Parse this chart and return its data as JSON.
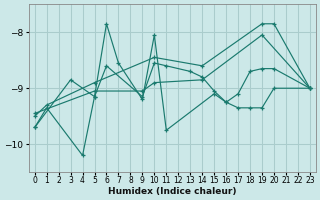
{
  "xlabel": "Humidex (Indice chaleur)",
  "xlim": [
    -0.5,
    23.5
  ],
  "ylim": [
    -10.5,
    -7.5
  ],
  "yticks": [
    -10,
    -9,
    -8
  ],
  "xticks": [
    0,
    1,
    2,
    3,
    4,
    5,
    6,
    7,
    8,
    9,
    10,
    11,
    12,
    13,
    14,
    15,
    16,
    17,
    18,
    19,
    20,
    21,
    22,
    23
  ],
  "bg_color": "#cce8e8",
  "grid_color": "#aacccc",
  "line_color": "#1a7a6e",
  "series": [
    {
      "x": [
        0,
        1,
        4,
        5,
        6,
        7,
        9,
        10,
        11,
        15,
        16,
        17,
        18,
        19,
        20,
        23
      ],
      "y": [
        -9.7,
        -9.35,
        -10.2,
        -9.15,
        -7.85,
        -8.55,
        -9.2,
        -8.05,
        -9.75,
        -9.1,
        -9.25,
        -9.35,
        -9.35,
        -9.35,
        -9.0,
        -9.0
      ]
    },
    {
      "x": [
        0,
        3,
        5,
        6,
        9,
        10,
        11,
        13,
        14,
        15,
        16,
        17,
        18,
        19,
        20,
        23
      ],
      "y": [
        -9.7,
        -8.85,
        -9.15,
        -8.6,
        -9.15,
        -8.55,
        -8.6,
        -8.7,
        -8.8,
        -9.05,
        -9.25,
        -9.1,
        -8.7,
        -8.65,
        -8.65,
        -9.0
      ]
    },
    {
      "x": [
        0,
        1,
        5,
        10,
        14,
        19,
        20,
        23
      ],
      "y": [
        -9.5,
        -9.3,
        -8.9,
        -8.45,
        -8.6,
        -7.85,
        -7.85,
        -9.0
      ]
    },
    {
      "x": [
        0,
        5,
        9,
        10,
        14,
        19,
        23
      ],
      "y": [
        -9.45,
        -9.05,
        -9.05,
        -8.9,
        -8.85,
        -8.05,
        -9.0
      ]
    }
  ]
}
